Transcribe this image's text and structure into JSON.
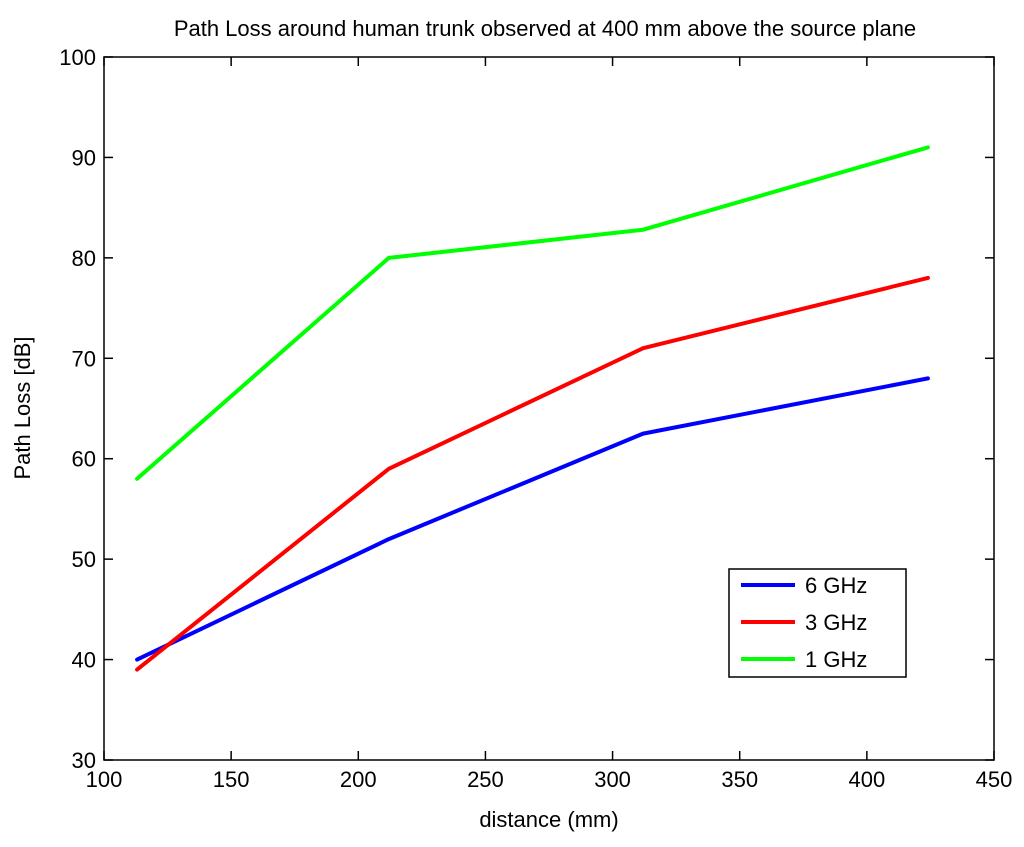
{
  "chart_data": {
    "type": "line",
    "title": "Path Loss around human trunk observed at 400 mm above the source plane",
    "xlabel": "distance (mm)",
    "ylabel": "Path Loss [dB]",
    "xlim": [
      100,
      450
    ],
    "ylim": [
      30,
      100
    ],
    "xticks": [
      100,
      150,
      200,
      250,
      300,
      350,
      400,
      450
    ],
    "yticks": [
      30,
      40,
      50,
      60,
      70,
      80,
      90,
      100
    ],
    "grid": false,
    "legend_position": "lower-right",
    "series": [
      {
        "name": "6 GHz",
        "color": "#0000ff",
        "x": [
          113,
          212,
          312,
          424
        ],
        "y": [
          40,
          52,
          62.5,
          68
        ]
      },
      {
        "name": "3 GHz",
        "color": "#ff0000",
        "x": [
          113,
          212,
          312,
          424
        ],
        "y": [
          39,
          59,
          71,
          78
        ]
      },
      {
        "name": "1 GHz",
        "color": "#00ff00",
        "x": [
          113,
          212,
          312,
          424
        ],
        "y": [
          58,
          80,
          82.8,
          91
        ]
      }
    ]
  }
}
